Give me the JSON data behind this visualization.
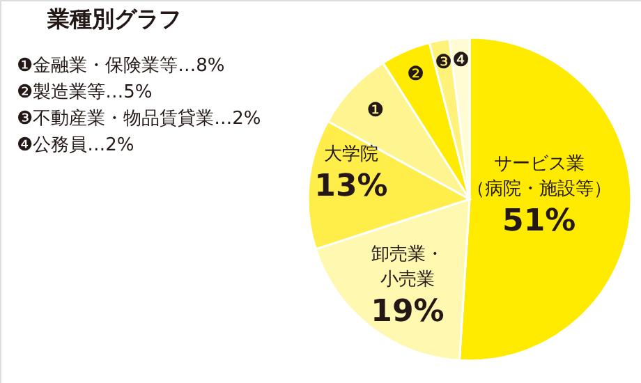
{
  "chart_data": {
    "type": "pie",
    "title": "業種別グラフ",
    "categories": [
      "サービス業（病院・施設等）",
      "卸売業・小売業",
      "大学院",
      "❶",
      "❷",
      "❸",
      "❹"
    ],
    "values": [
      51,
      19,
      13,
      8,
      5,
      2,
      2
    ],
    "value_labels": [
      "51%",
      "19%",
      "13%",
      null,
      null,
      null,
      null
    ],
    "colors": [
      "#ffeb00",
      "#fff8b0",
      "#ffee4a",
      "#fff590",
      "#ffeb00",
      "#fff27a",
      "#fffbd2"
    ],
    "annotations": [
      "❶金融業・保険業等…8%",
      "❷製造業等…5%",
      "❸不動産業・物品賃貸業…2%",
      "❹公務員…2%"
    ],
    "legend": false
  }
}
